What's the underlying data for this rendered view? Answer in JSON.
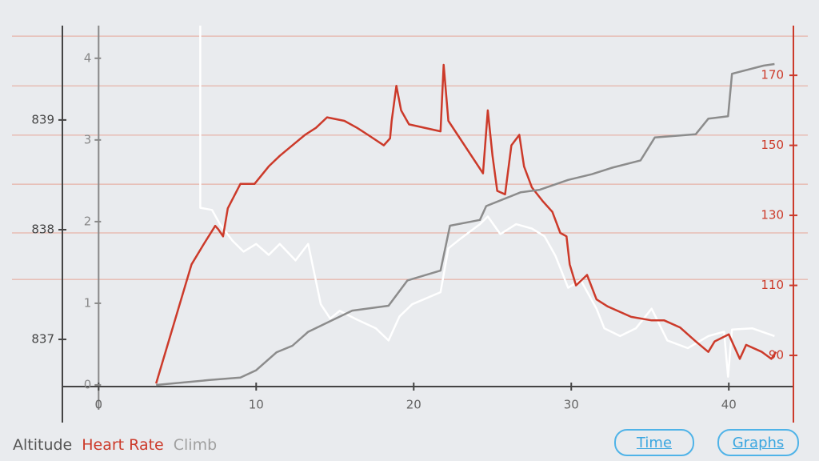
{
  "chart_data": {
    "type": "line",
    "xlim": [
      -2.3,
      44.1
    ],
    "xticks": [
      0,
      10,
      20,
      30,
      40
    ],
    "ylim": [
      836.57,
      839.86
    ],
    "yticks": [
      837,
      838,
      839
    ],
    "y2lim": [
      81.1,
      184.2
    ],
    "y2ticks": [
      90,
      110,
      130,
      150,
      170
    ],
    "y2grid": [
      181.2,
      167,
      152.9,
      138.9,
      125,
      111.7
    ],
    "y3lim": [
      -0.02,
      4.4
    ],
    "y3ticks": [
      0,
      1,
      2,
      3,
      4
    ],
    "series": [
      {
        "name": "Altitude",
        "color": "#ffffff",
        "label_color": "#555555",
        "axis": "y",
        "x": [
          6.45,
          6.45,
          7.2,
          7.7,
          8.5,
          9.2,
          10,
          10.8,
          11.5,
          12.5,
          13.3,
          14.1,
          14.7,
          15.3,
          16.4,
          17.6,
          18.4,
          19.1,
          19.9,
          21.7,
          22.2,
          22.9,
          24.2,
          24.7,
          25.5,
          26.5,
          27.5,
          28.3,
          29,
          29.8,
          30.6,
          31.6,
          32.1,
          33.1,
          34.1,
          35.1,
          36.1,
          37.4,
          38.7,
          39.7,
          39.95,
          40.2,
          41.5,
          42.9
        ],
        "values": [
          839.86,
          838.2,
          838.18,
          838.05,
          837.9,
          837.8,
          837.87,
          837.77,
          837.87,
          837.72,
          837.87,
          837.32,
          837.19,
          837.26,
          837.18,
          837.1,
          836.99,
          837.21,
          837.32,
          837.43,
          837.83,
          837.91,
          838.05,
          838.12,
          837.96,
          838.05,
          838.01,
          837.94,
          837.76,
          837.47,
          837.54,
          837.28,
          837.1,
          837.03,
          837.1,
          837.28,
          836.99,
          836.92,
          837.03,
          837.07,
          836.66,
          837.09,
          837.1,
          837.03
        ]
      },
      {
        "name": "Heart Rate",
        "color": "#cc3a2a",
        "label_color": "#cc3a2a",
        "axis": "y2",
        "x": [
          3.65,
          5.9,
          6.7,
          7.4,
          7.6,
          7.9,
          8.2,
          9,
          9.9,
          10.8,
          11.5,
          12.3,
          13.1,
          13.8,
          14.5,
          15.6,
          16.4,
          17.1,
          18.1,
          18.5,
          18.6,
          18.9,
          19.2,
          19.7,
          21.7,
          21.9,
          22.2,
          24.4,
          24.7,
          25,
          25.3,
          25.8,
          26.2,
          26.7,
          27,
          27.5,
          28.2,
          28.8,
          29.3,
          29.7,
          29.9,
          30.3,
          31,
          31.6,
          32.3,
          33.8,
          35.1,
          35.9,
          36.9,
          37.9,
          38.7,
          39.1,
          40,
          40.7,
          41.1,
          42.1,
          42.7,
          43
        ],
        "values": [
          82,
          116,
          122,
          127,
          126,
          124,
          132,
          139,
          139,
          144,
          147,
          150,
          153,
          155,
          158,
          157,
          155,
          153,
          150,
          152,
          157,
          167,
          160,
          156,
          154,
          173,
          157,
          142,
          160,
          147,
          137,
          136,
          150,
          153,
          144,
          138,
          134,
          131,
          125,
          124,
          116,
          110,
          113,
          106,
          104,
          101,
          100,
          100,
          98,
          94,
          91,
          94,
          96,
          89,
          93,
          91,
          89,
          91
        ]
      },
      {
        "name": "Climb",
        "color": "#8c8c8c",
        "label_color": "#a0a0a0",
        "axis": "y3",
        "x": [
          3.65,
          7.05,
          9,
          10,
          11.3,
          12.3,
          13.3,
          14.8,
          16.1,
          18.4,
          19.6,
          21.7,
          22.3,
          24.2,
          24.6,
          26.8,
          28,
          29.8,
          31.3,
          32.6,
          34.4,
          35.3,
          37.9,
          38.7,
          39.95,
          40.2,
          42.2,
          42.9
        ],
        "values": [
          0,
          0.06,
          0.09,
          0.18,
          0.4,
          0.48,
          0.65,
          0.79,
          0.91,
          0.97,
          1.28,
          1.4,
          1.95,
          2.02,
          2.19,
          2.36,
          2.39,
          2.51,
          2.58,
          2.66,
          2.75,
          3.03,
          3.07,
          3.26,
          3.29,
          3.81,
          3.91,
          3.93
        ]
      }
    ]
  },
  "buttons": [
    "Time",
    "Graphs"
  ]
}
